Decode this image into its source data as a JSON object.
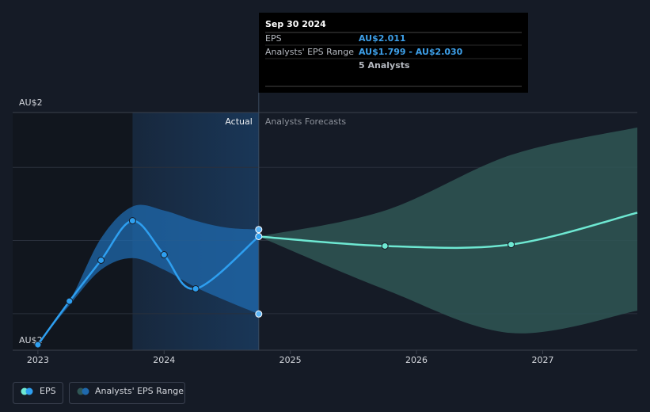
{
  "chart_data": {
    "type": "line",
    "xlim": [
      2022.8,
      2027.75
    ],
    "xticks": [
      2023,
      2024,
      2025,
      2026,
      2027
    ],
    "ylim": [
      1.7,
      2.35
    ],
    "yticks": [
      {
        "value": 1.7,
        "label": "AU$2"
      },
      {
        "value": 2.35,
        "label": "AU$2"
      }
    ],
    "ygrid": [
      1.8,
      2.0,
      2.2
    ],
    "actual_label": "Actual",
    "forecast_label": "Analysts Forecasts",
    "series": [
      {
        "name": "EPS",
        "color": "#2e9ff0",
        "x": [
          2023,
          2023.25,
          2023.5,
          2023.75,
          2024,
          2024.25,
          2024.75
        ],
        "values": [
          1.715,
          1.834,
          1.946,
          2.054,
          1.961,
          1.868,
          2.011
        ]
      },
      {
        "color": "#6ee8d2",
        "x": [
          2024.75,
          2025.75,
          2026.75,
          2027.75
        ],
        "values": [
          2.011,
          1.985,
          1.989,
          2.076
        ]
      }
    ],
    "range": {
      "name": "Analysts' EPS Range",
      "actual": {
        "color": "#1f69ad",
        "x": [
          2023,
          2023.25,
          2023.5,
          2023.75,
          2024,
          2024.25,
          2024.5,
          2024.75
        ],
        "high": [
          1.715,
          1.834,
          2.006,
          2.093,
          2.082,
          2.054,
          2.035,
          2.03
        ],
        "low": [
          1.715,
          1.823,
          1.92,
          1.952,
          1.92,
          1.872,
          1.834,
          1.799
        ]
      },
      "forecast": {
        "color": "#2f5655",
        "x": [
          2024.75,
          2025.75,
          2026.75,
          2027.75
        ],
        "high": [
          2.011,
          2.082,
          2.234,
          2.309
        ],
        "low": [
          2.011,
          1.866,
          1.747,
          1.808
        ]
      }
    },
    "tooltip": {
      "title": "Sep 30 2024",
      "rows": [
        [
          "EPS",
          "AU$2.011"
        ],
        [
          "Analysts' EPS Range",
          "AU$1.799 - AU$2.030"
        ]
      ],
      "note": "5 Analysts"
    }
  }
}
